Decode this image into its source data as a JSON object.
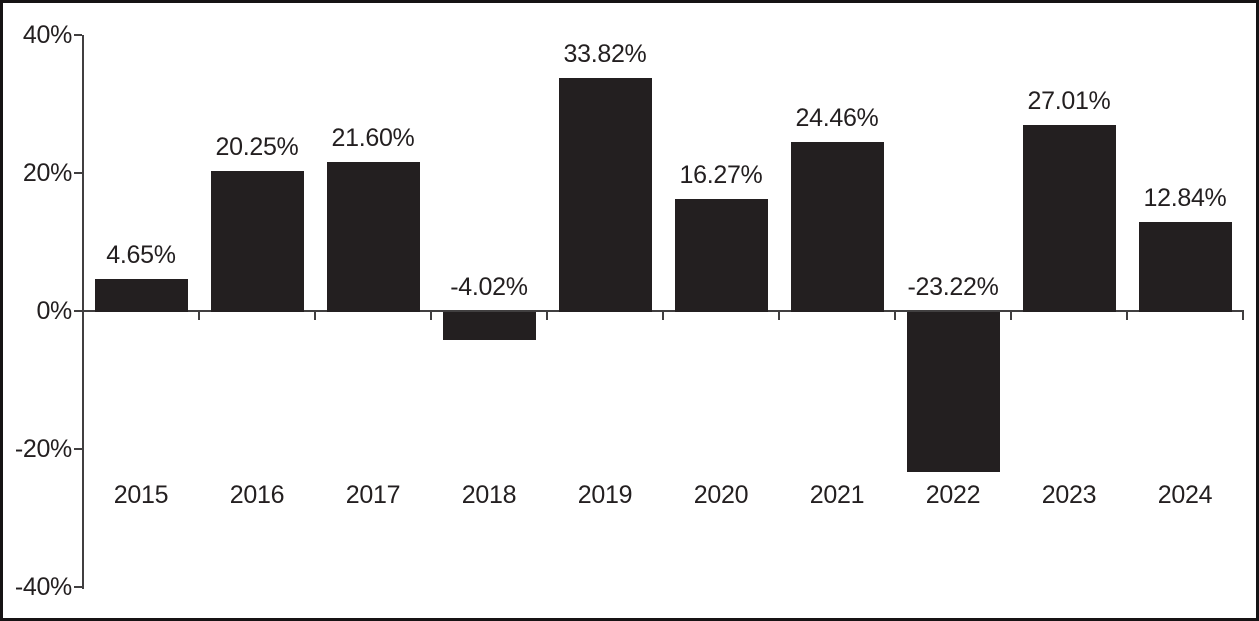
{
  "figure": {
    "background": "#ffffff",
    "border_color": "#161314",
    "text_color": "#231f20"
  },
  "chart_data": {
    "type": "bar",
    "title": "",
    "xlabel": "",
    "ylabel": "",
    "categories": [
      "2015",
      "2016",
      "2017",
      "2018",
      "2019",
      "2020",
      "2021",
      "2022",
      "2023",
      "2024"
    ],
    "values": [
      4.65,
      20.25,
      21.6,
      -4.02,
      33.82,
      16.27,
      24.46,
      -23.22,
      27.01,
      12.84
    ],
    "value_labels": [
      "4.65%",
      "20.25%",
      "21.60%",
      "-4.02%",
      "33.82%",
      "16.27%",
      "24.46%",
      "-23.22%",
      "27.01%",
      "12.84%"
    ],
    "ylim": [
      -40,
      40
    ],
    "y_ticks": [
      {
        "value": 40,
        "label": "40%"
      },
      {
        "value": 20,
        "label": "20%"
      },
      {
        "value": 0,
        "label": "0%"
      },
      {
        "value": -20,
        "label": "-20%"
      },
      {
        "value": -40,
        "label": "-40%"
      }
    ],
    "bar_color": "#231f20",
    "axis_color": "#413f40",
    "grid": false,
    "legend": null
  }
}
